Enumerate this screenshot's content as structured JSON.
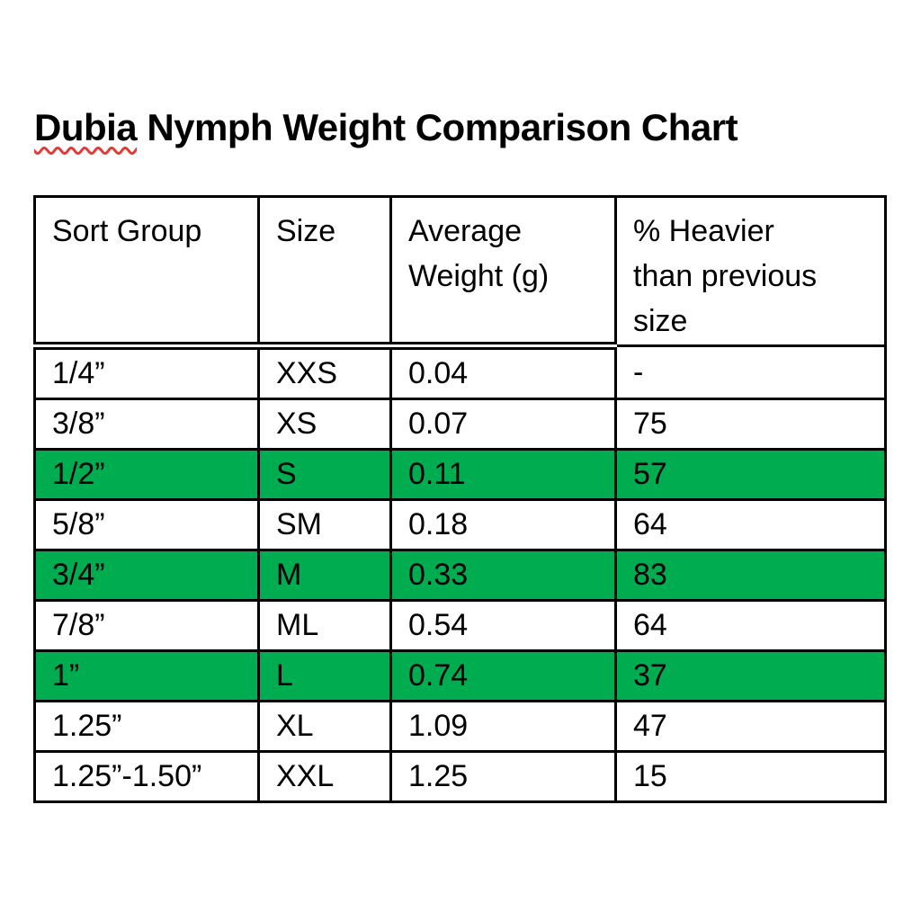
{
  "page": {
    "background_color": "#ffffff",
    "text_color": "#000000"
  },
  "title": {
    "full": "Dubia Nymph Weight Comparison Chart",
    "misspelled_word": "Dubia",
    "rest": " Nymph Weight Comparison Chart",
    "spellcheck_underline_color": "#e53935"
  },
  "table": {
    "highlight_color": "#00AC50",
    "border_color": "#000000",
    "headers": [
      "Sort Group",
      "Size",
      "Average\nWeight (g)",
      "% Heavier\nthan previous\nsize"
    ],
    "rows": [
      {
        "sort_group": "1/4”",
        "size": "XXS",
        "avg_weight_g": "0.04",
        "pct_heavier": "-",
        "highlight": false
      },
      {
        "sort_group": "3/8”",
        "size": "XS",
        "avg_weight_g": "0.07",
        "pct_heavier": "75",
        "highlight": false
      },
      {
        "sort_group": "1/2”",
        "size": "S",
        "avg_weight_g": "0.11",
        "pct_heavier": "57",
        "highlight": true
      },
      {
        "sort_group": "5/8”",
        "size": "SM",
        "avg_weight_g": "0.18",
        "pct_heavier": "64",
        "highlight": false
      },
      {
        "sort_group": "3/4”",
        "size": "M",
        "avg_weight_g": "0.33",
        "pct_heavier": "83",
        "highlight": true
      },
      {
        "sort_group": "7/8”",
        "size": "ML",
        "avg_weight_g": "0.54",
        "pct_heavier": "64",
        "highlight": false
      },
      {
        "sort_group": "1”",
        "size": "L",
        "avg_weight_g": "0.74",
        "pct_heavier": "37",
        "highlight": true
      },
      {
        "sort_group": "1.25”",
        "size": "XL",
        "avg_weight_g": "1.09",
        "pct_heavier": "47",
        "highlight": false
      },
      {
        "sort_group": "1.25”-1.50”",
        "size": "XXL",
        "avg_weight_g": "1.25",
        "pct_heavier": "15",
        "highlight": false
      }
    ]
  }
}
